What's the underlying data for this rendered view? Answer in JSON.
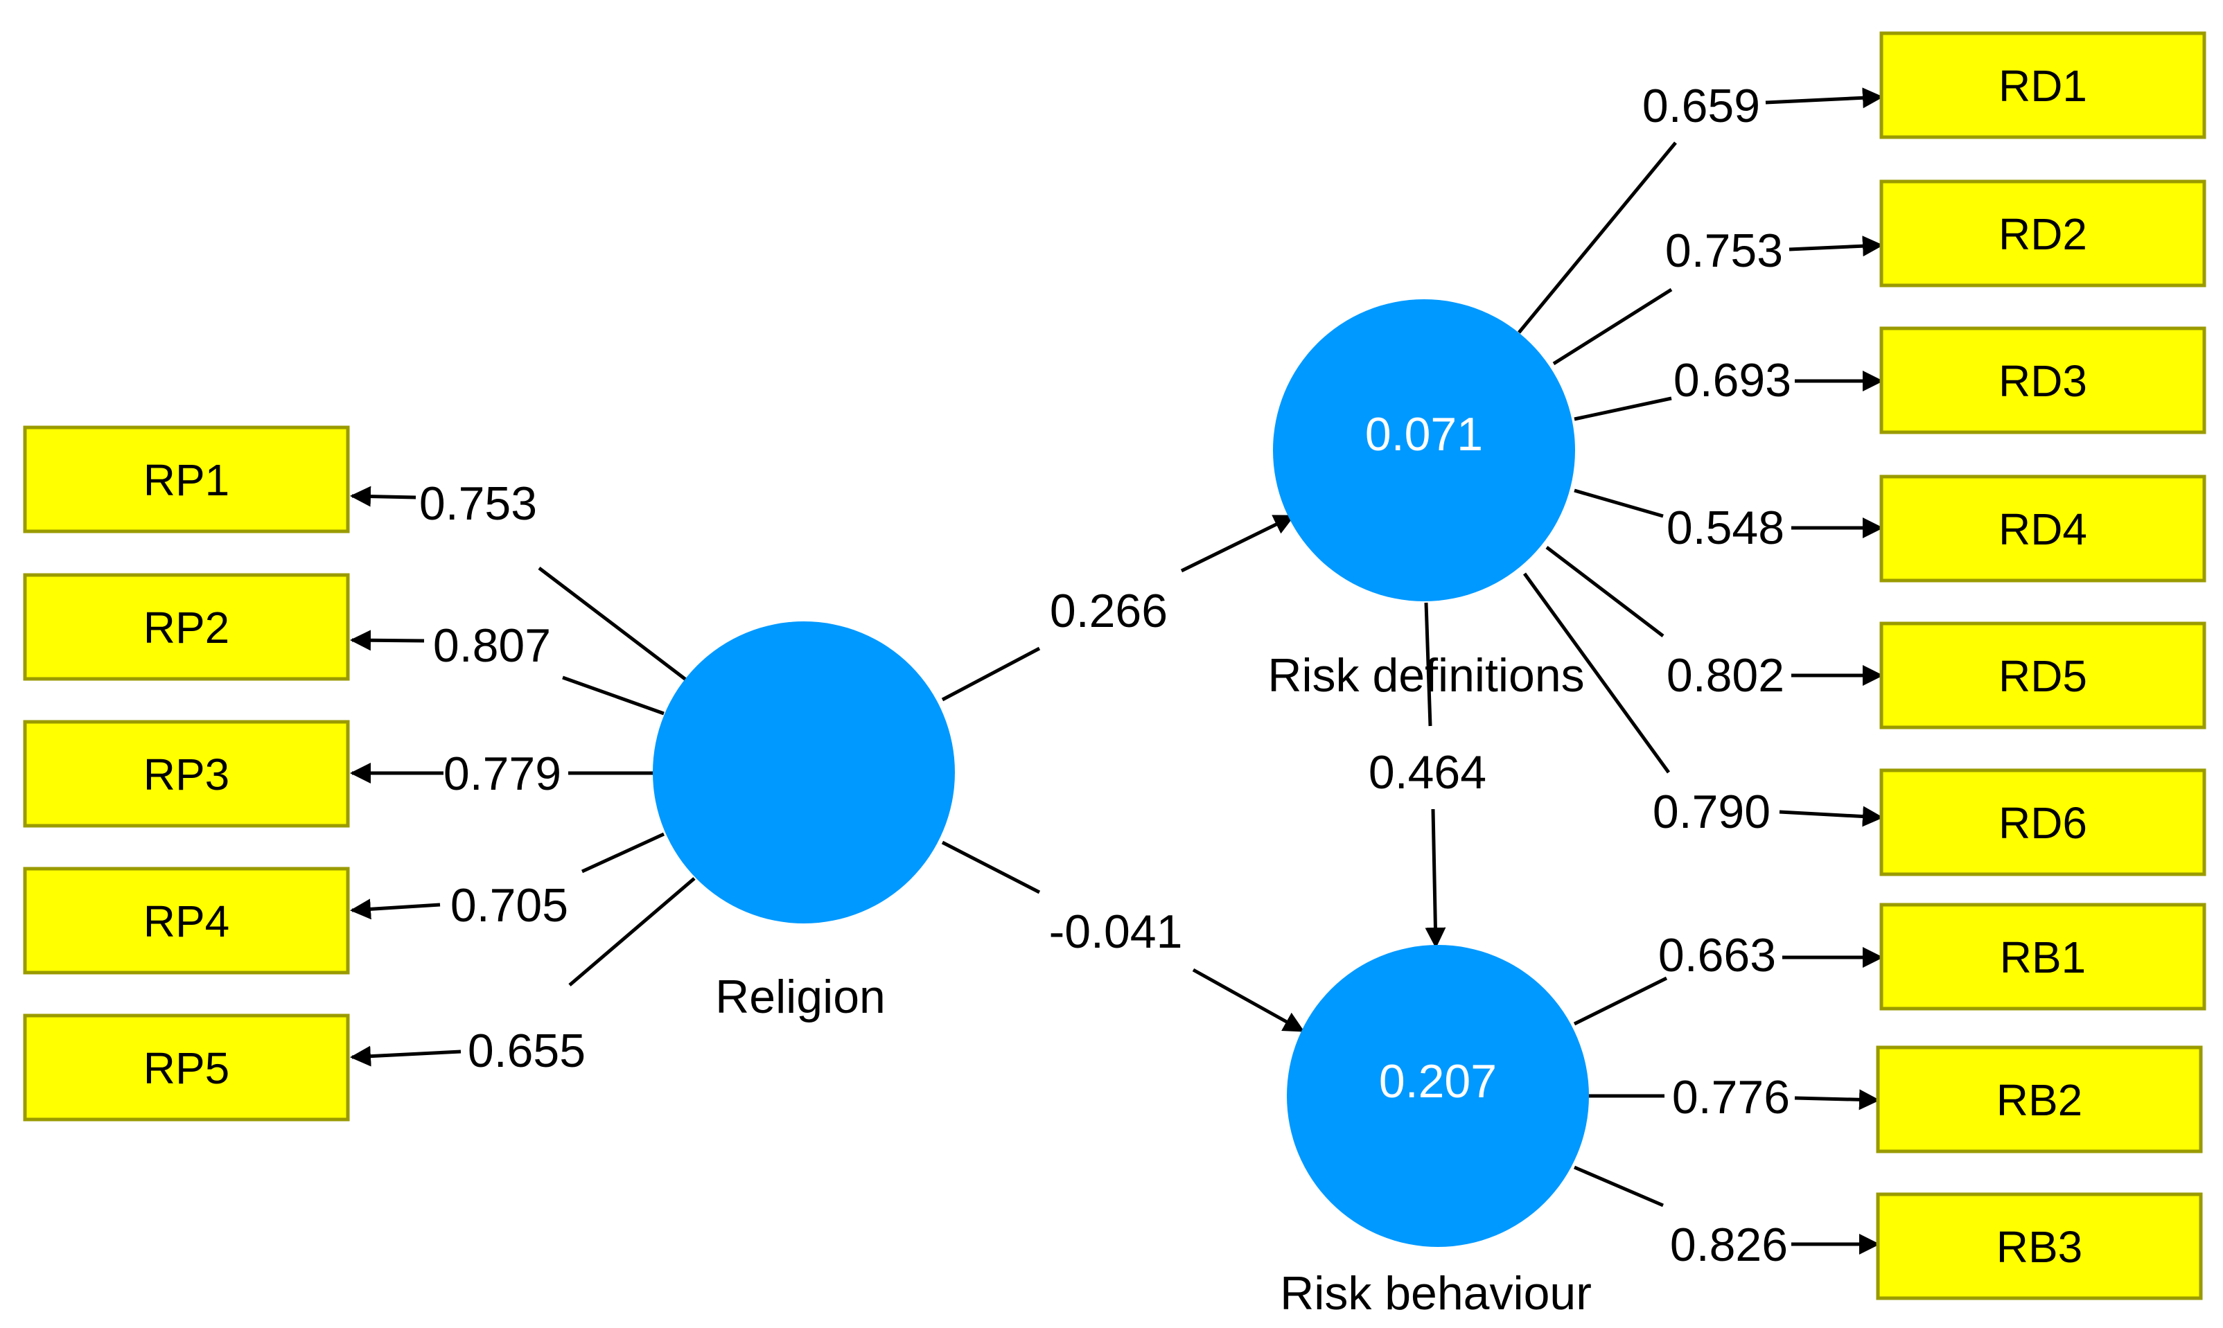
{
  "colors": {
    "indicator_fill": "#ffff00",
    "indicator_border": "#9a9a00",
    "construct_fill": "#0099ff",
    "line": "#000000"
  },
  "constructs": {
    "religion": {
      "name": "Religion",
      "r2": ""
    },
    "risk_definitions": {
      "name": "Risk definitions",
      "r2": "0.071"
    },
    "risk_behaviour": {
      "name": "Risk behaviour",
      "r2": "0.207"
    }
  },
  "indicators": {
    "rp": [
      {
        "label": "RP1",
        "loading": "0.753"
      },
      {
        "label": "RP2",
        "loading": "0.807"
      },
      {
        "label": "RP3",
        "loading": "0.779"
      },
      {
        "label": "RP4",
        "loading": "0.705"
      },
      {
        "label": "RP5",
        "loading": "0.655"
      }
    ],
    "rd": [
      {
        "label": "RD1",
        "loading": "0.659"
      },
      {
        "label": "RD2",
        "loading": "0.753"
      },
      {
        "label": "RD3",
        "loading": "0.693"
      },
      {
        "label": "RD4",
        "loading": "0.548"
      },
      {
        "label": "RD5",
        "loading": "0.802"
      },
      {
        "label": "RD6",
        "loading": "0.790"
      }
    ],
    "rb": [
      {
        "label": "RB1",
        "loading": "0.663"
      },
      {
        "label": "RB2",
        "loading": "0.776"
      },
      {
        "label": "RB3",
        "loading": "0.826"
      }
    ]
  },
  "paths": {
    "religion_to_risk_definitions": "0.266",
    "religion_to_risk_behaviour": "-0.041",
    "risk_definitions_to_risk_behaviour": "0.464"
  }
}
